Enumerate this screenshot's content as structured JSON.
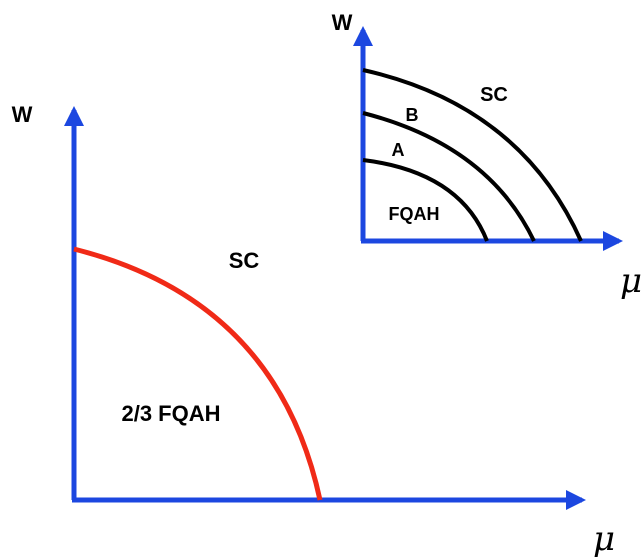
{
  "colors": {
    "axis": "#1c47e0",
    "main_boundary": "#f02a17",
    "inset_boundaries": "#000000",
    "text": "#000000"
  },
  "main_diagram": {
    "y_axis_label": "W",
    "x_axis_label": "μ",
    "region_outside": "SC",
    "region_inside": "2/3 FQAH"
  },
  "inset_diagram": {
    "y_axis_label": "W",
    "x_axis_label": "μ",
    "region_outside": "SC",
    "region_inner": "FQAH",
    "boundary_labels": [
      "A",
      "B"
    ]
  }
}
